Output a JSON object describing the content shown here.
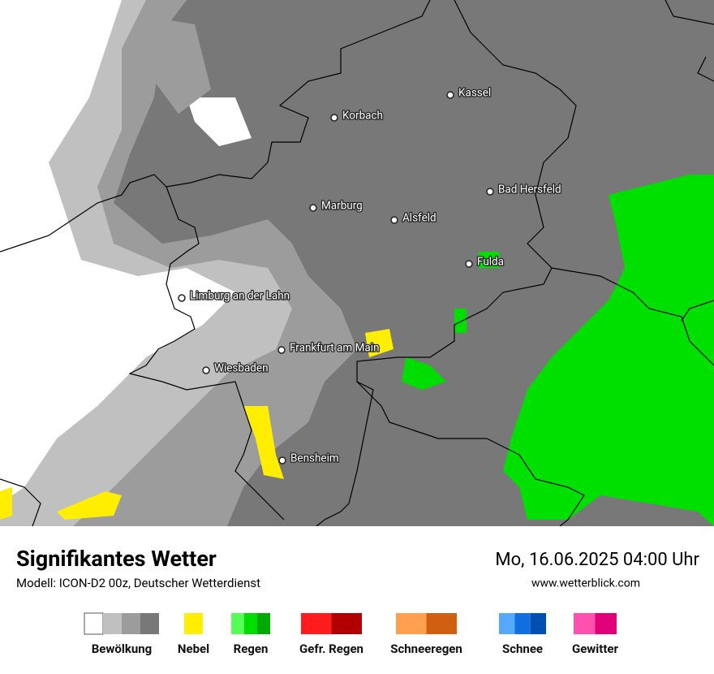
{
  "map": {
    "cities": [
      "Kassel",
      "Korbach",
      "Bad Hersfeld",
      "Marburg",
      "Alsfeld",
      "Fulda",
      "Limburg an der Lahn",
      "Frankfurt am Main",
      "Wiesbaden",
      "Bensheim"
    ]
  },
  "header": {
    "title": "Signifikantes Wetter",
    "subtitle": "Modell: ICON-D2 00z, Deutscher Wetterdienst",
    "datetime": "Mo, 16.06.2025 04:00 Uhr",
    "website": "www.wetterblick.com"
  },
  "legend": [
    {
      "label": "Bewölkung",
      "colors": [
        "#ffffff",
        "#c0c0c0",
        "#9c9c9c",
        "#787878"
      ]
    },
    {
      "label": "Nebel",
      "colors": [
        "#ffee00"
      ]
    },
    {
      "label": "Regen",
      "colors": [
        "#55ff55",
        "#00dd00",
        "#00aa00"
      ]
    },
    {
      "label": "Gefr. Regen",
      "colors": [
        "#ff1c1c",
        "#b00000"
      ]
    },
    {
      "label": "Schneeregen",
      "colors": [
        "#ffa050",
        "#d06010"
      ]
    },
    {
      "label": "Schnee",
      "colors": [
        "#55aaff",
        "#1070e0",
        "#0050b0"
      ]
    },
    {
      "label": "Gewitter",
      "colors": [
        "#ff50b0",
        "#e0007a"
      ]
    }
  ]
}
